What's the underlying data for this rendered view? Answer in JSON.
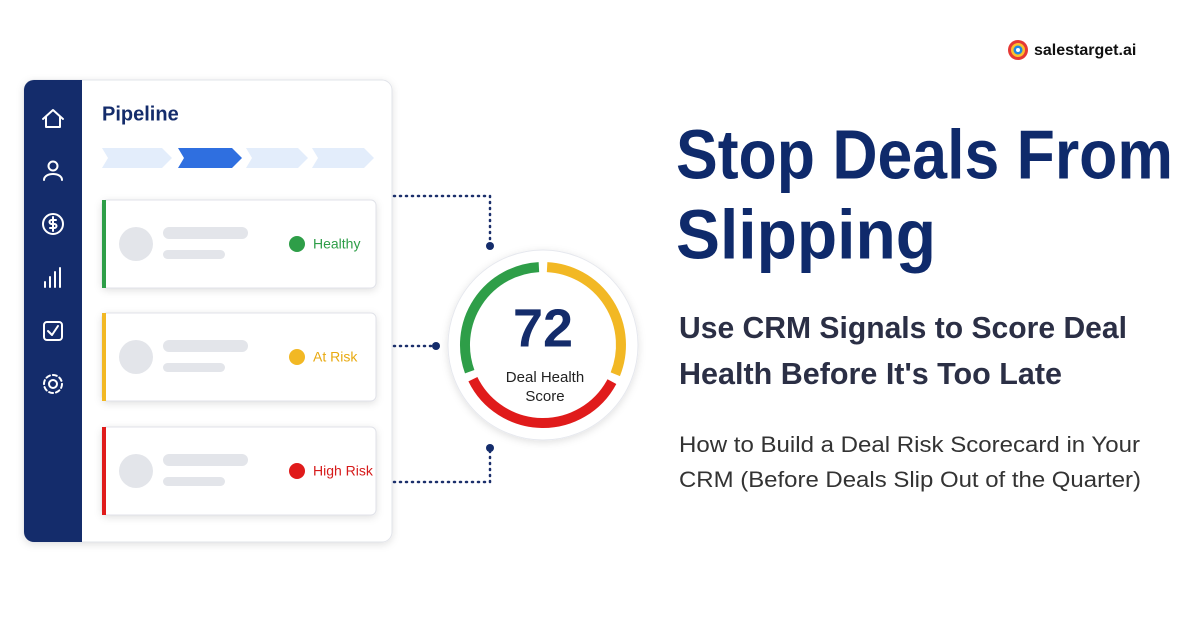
{
  "brand": {
    "name": "salestarget.ai"
  },
  "pipeline": {
    "title": "Pipeline",
    "deals": [
      {
        "status": "Healthy"
      },
      {
        "status": "At Risk"
      },
      {
        "status": "High Risk"
      }
    ]
  },
  "gauge": {
    "score": 72,
    "label_lines": [
      "Deal Health",
      "Score"
    ]
  },
  "headline": {
    "title_lines": [
      "Stop Deals From",
      "Slipping"
    ],
    "subtitle_lines": [
      "Use CRM Signals to Score Deal",
      "Health Before It's Too Late"
    ],
    "description_lines": [
      "How to Build a Deal Risk Scorecard in Your",
      "CRM (Before Deals Slip Out of the Quarter)"
    ]
  }
}
